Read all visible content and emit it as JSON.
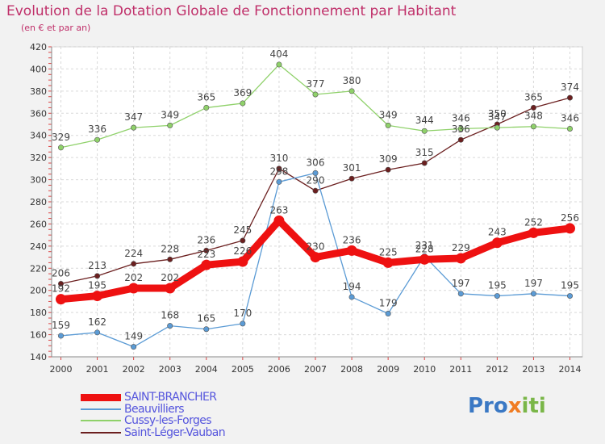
{
  "title": "Evolution de la Dotation Globale de Fonctionnement par Habitant",
  "subtitle": "(en € et par an)",
  "chart_data": {
    "type": "line",
    "x": [
      "2000",
      "2001",
      "2002",
      "2003",
      "2004",
      "2005",
      "2006",
      "2007",
      "2008",
      "2009",
      "2010",
      "2011",
      "2012",
      "2013",
      "2014"
    ],
    "ylim": [
      140,
      420
    ],
    "yticks": [
      140,
      160,
      180,
      200,
      220,
      240,
      260,
      280,
      300,
      320,
      340,
      360,
      380,
      400,
      420
    ],
    "grid": true,
    "legend_position": "bottom-left",
    "series": [
      {
        "name": "SAINT-BRANCHER",
        "color": "#ee1111",
        "values": [
          192,
          195,
          202,
          202,
          223,
          226,
          263,
          230,
          236,
          225,
          228,
          229,
          243,
          252,
          256
        ]
      },
      {
        "name": "Beauvilliers",
        "color": "#5b9bd5",
        "values": [
          159,
          162,
          149,
          168,
          165,
          170,
          298,
          306,
          194,
          179,
          231,
          197,
          195,
          197,
          195
        ]
      },
      {
        "name": "Cussy-les-Forges",
        "color": "#8fd16a",
        "values": [
          329,
          336,
          347,
          349,
          365,
          369,
          404,
          377,
          380,
          349,
          344,
          346,
          347,
          348,
          346
        ]
      },
      {
        "name": "Saint-Léger-Vauban",
        "color": "#6b1f1f",
        "values": [
          206,
          213,
          224,
          228,
          236,
          245,
          310,
          290,
          301,
          309,
          315,
          336,
          350,
          365,
          374
        ]
      }
    ]
  },
  "logo": {
    "part1": "Pro",
    "part2": "x",
    "part3": "iti"
  }
}
